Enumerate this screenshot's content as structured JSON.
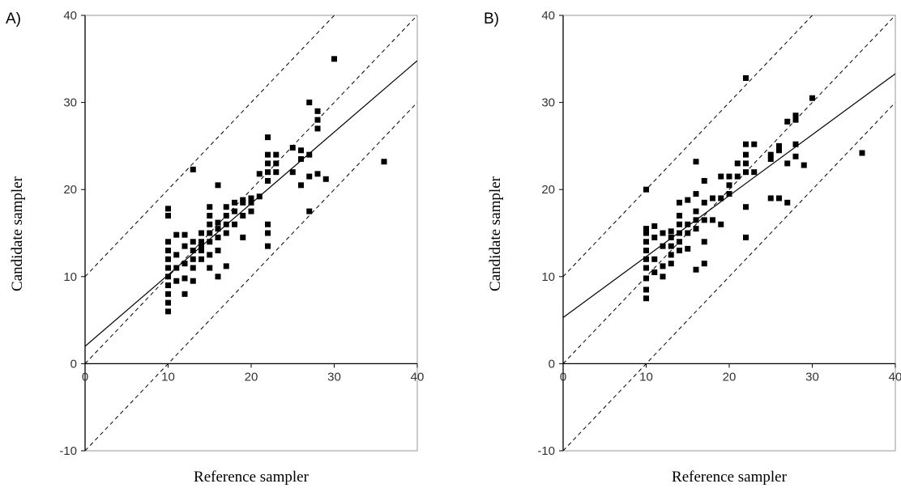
{
  "chart_data": [
    {
      "type": "scatter",
      "panel_label": "A)",
      "xlabel": "Reference sampler",
      "ylabel": "Candidate sampler",
      "xlim": [
        0,
        40
      ],
      "ylim": [
        -10,
        40
      ],
      "xticks": [
        "0",
        "10",
        "20",
        "30",
        "40"
      ],
      "yticks": [
        "-10",
        "0",
        "10",
        "20",
        "30",
        "40"
      ],
      "grid": false,
      "regression_line": {
        "intercept": 2.0,
        "slope": 0.82
      },
      "reference_lines": [
        {
          "intercept": 0,
          "slope": 1
        },
        {
          "intercept": 10,
          "slope": 1
        },
        {
          "intercept": -10,
          "slope": 1
        }
      ],
      "points": [
        [
          10,
          6
        ],
        [
          10,
          7
        ],
        [
          10,
          8
        ],
        [
          10,
          9
        ],
        [
          10,
          10
        ],
        [
          10,
          11
        ],
        [
          10,
          12
        ],
        [
          10,
          13
        ],
        [
          10,
          14
        ],
        [
          10,
          17
        ],
        [
          10,
          17.8
        ],
        [
          11,
          9.5
        ],
        [
          11,
          11
        ],
        [
          11,
          12.5
        ],
        [
          11,
          14.8
        ],
        [
          12,
          8
        ],
        [
          12,
          9.8
        ],
        [
          12,
          11.5
        ],
        [
          12,
          13.5
        ],
        [
          12,
          14.8
        ],
        [
          13,
          9.5
        ],
        [
          13,
          11
        ],
        [
          13,
          12
        ],
        [
          13,
          13
        ],
        [
          13,
          14
        ],
        [
          13,
          22.3
        ],
        [
          14,
          12
        ],
        [
          14,
          13
        ],
        [
          14,
          14
        ],
        [
          14,
          15
        ],
        [
          14,
          13.5
        ],
        [
          15,
          11
        ],
        [
          15,
          12.5
        ],
        [
          15,
          14
        ],
        [
          15,
          15
        ],
        [
          15,
          16
        ],
        [
          15,
          17
        ],
        [
          15,
          18
        ],
        [
          16,
          10
        ],
        [
          16,
          13
        ],
        [
          16,
          14.5
        ],
        [
          16,
          15.5
        ],
        [
          16,
          16.2
        ],
        [
          16,
          20.5
        ],
        [
          17,
          11.2
        ],
        [
          17,
          15
        ],
        [
          17,
          16
        ],
        [
          17,
          17
        ],
        [
          17,
          18
        ],
        [
          18,
          16
        ],
        [
          18,
          17.5
        ],
        [
          18,
          18.5
        ],
        [
          19,
          14.5
        ],
        [
          19,
          17
        ],
        [
          19,
          18.5
        ],
        [
          19,
          18.8
        ],
        [
          20,
          17.5
        ],
        [
          20,
          18.5
        ],
        [
          20,
          19
        ],
        [
          21,
          19.2
        ],
        [
          21,
          21.8
        ],
        [
          22,
          13.5
        ],
        [
          22,
          15
        ],
        [
          22,
          16
        ],
        [
          22,
          21
        ],
        [
          22,
          22
        ],
        [
          22,
          23
        ],
        [
          22,
          24
        ],
        [
          22,
          26
        ],
        [
          23,
          22
        ],
        [
          23,
          23
        ],
        [
          23,
          24
        ],
        [
          25,
          22
        ],
        [
          25,
          24.8
        ],
        [
          26,
          20.5
        ],
        [
          26,
          23.5
        ],
        [
          26,
          24.5
        ],
        [
          27,
          17.5
        ],
        [
          27,
          21.5
        ],
        [
          27,
          24
        ],
        [
          27,
          30
        ],
        [
          28,
          21.8
        ],
        [
          28,
          27
        ],
        [
          28,
          28
        ],
        [
          28,
          29
        ],
        [
          29,
          21.2
        ],
        [
          30,
          35
        ],
        [
          36,
          23.2
        ]
      ]
    },
    {
      "type": "scatter",
      "panel_label": "B)",
      "xlabel": "Reference sampler",
      "ylabel": "Candidate sampler",
      "xlim": [
        0,
        40
      ],
      "ylim": [
        -10,
        40
      ],
      "xticks": [
        "0",
        "10",
        "20",
        "30",
        "40"
      ],
      "yticks": [
        "-10",
        "0",
        "10",
        "20",
        "30",
        "40"
      ],
      "grid": false,
      "regression_line": {
        "intercept": 5.3,
        "slope": 0.7
      },
      "reference_lines": [
        {
          "intercept": 0,
          "slope": 1
        },
        {
          "intercept": 10,
          "slope": 1
        },
        {
          "intercept": -10,
          "slope": 1
        }
      ],
      "points": [
        [
          10,
          7.5
        ],
        [
          10,
          8.5
        ],
        [
          10,
          9.8
        ],
        [
          10,
          11
        ],
        [
          10,
          12
        ],
        [
          10,
          13
        ],
        [
          10,
          14
        ],
        [
          10,
          15
        ],
        [
          10,
          15.5
        ],
        [
          10,
          20
        ],
        [
          11,
          10.5
        ],
        [
          11,
          12
        ],
        [
          11,
          14.5
        ],
        [
          11,
          15.8
        ],
        [
          12,
          10
        ],
        [
          12,
          11.2
        ],
        [
          12,
          13.5
        ],
        [
          12,
          15
        ],
        [
          13,
          11.5
        ],
        [
          13,
          12.5
        ],
        [
          13,
          13.5
        ],
        [
          13,
          14.5
        ],
        [
          13,
          15.2
        ],
        [
          14,
          13
        ],
        [
          14,
          14
        ],
        [
          14,
          15
        ],
        [
          14,
          16
        ],
        [
          14,
          17
        ],
        [
          14,
          18.5
        ],
        [
          15,
          13.2
        ],
        [
          15,
          15
        ],
        [
          15,
          16
        ],
        [
          15,
          18.8
        ],
        [
          16,
          10.8
        ],
        [
          16,
          15.5
        ],
        [
          16,
          16.5
        ],
        [
          16,
          17.5
        ],
        [
          16,
          19.5
        ],
        [
          16,
          23.2
        ],
        [
          17,
          11.5
        ],
        [
          17,
          14
        ],
        [
          17,
          16.5
        ],
        [
          17,
          18.5
        ],
        [
          17,
          21
        ],
        [
          18,
          16.5
        ],
        [
          18,
          19
        ],
        [
          19,
          16
        ],
        [
          19,
          19
        ],
        [
          19,
          21.5
        ],
        [
          20,
          19.5
        ],
        [
          20,
          20.5
        ],
        [
          20,
          21.5
        ],
        [
          21,
          21.5
        ],
        [
          21,
          23
        ],
        [
          22,
          14.5
        ],
        [
          22,
          18
        ],
        [
          22,
          22
        ],
        [
          22,
          23
        ],
        [
          22,
          24
        ],
        [
          22,
          25.2
        ],
        [
          22,
          32.8
        ],
        [
          23,
          22
        ],
        [
          23,
          25.2
        ],
        [
          25,
          19
        ],
        [
          25,
          23.5
        ],
        [
          25,
          24
        ],
        [
          26,
          19
        ],
        [
          26,
          24.5
        ],
        [
          26,
          25
        ],
        [
          27,
          18.5
        ],
        [
          27,
          23
        ],
        [
          27,
          27.8
        ],
        [
          28,
          23.8
        ],
        [
          28,
          25.2
        ],
        [
          28,
          28
        ],
        [
          28,
          28.5
        ],
        [
          29,
          22.8
        ],
        [
          30,
          30.5
        ],
        [
          36,
          24.2
        ]
      ]
    }
  ]
}
